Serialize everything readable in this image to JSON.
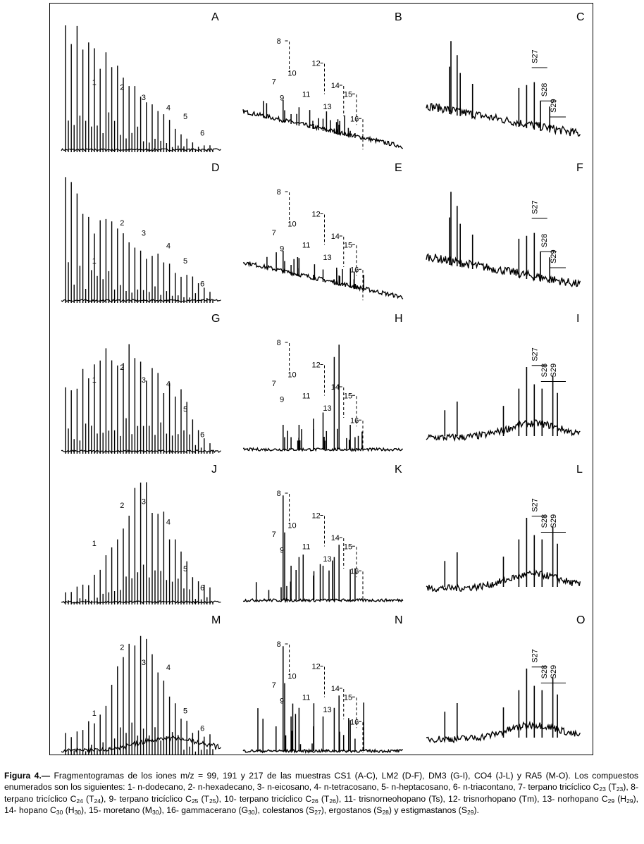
{
  "chart_data": [
    {
      "type": "line",
      "panel": "A",
      "kind": "alkane",
      "title": "A",
      "peak_labels": [
        "1",
        "2",
        "3",
        "4",
        "5",
        "6"
      ],
      "envelope": "front",
      "label_y": [
        0.52,
        0.48,
        0.4,
        0.32,
        0.25,
        0.12
      ]
    },
    {
      "type": "line",
      "panel": "B",
      "kind": "terpane",
      "title": "B",
      "peak_labels": [
        "7",
        "8",
        "9",
        "10",
        "11",
        "12",
        "13",
        "14",
        "15",
        "16"
      ],
      "profile": "low"
    },
    {
      "type": "line",
      "panel": "C",
      "kind": "sterane",
      "title": "C",
      "series_labels": [
        "S27",
        "S28",
        "S29"
      ],
      "profile": "early-high"
    },
    {
      "type": "line",
      "panel": "D",
      "kind": "alkane",
      "title": "D",
      "peak_labels": [
        "1",
        "2",
        "3",
        "4",
        "5",
        "6"
      ],
      "envelope": "front-mid",
      "label_y": [
        0.3,
        0.6,
        0.52,
        0.42,
        0.3,
        0.12
      ]
    },
    {
      "type": "line",
      "panel": "E",
      "kind": "terpane",
      "title": "E",
      "peak_labels": [
        "7",
        "8",
        "9",
        "10",
        "11",
        "12",
        "13",
        "14",
        "15",
        "16"
      ],
      "profile": "low"
    },
    {
      "type": "line",
      "panel": "F",
      "kind": "sterane",
      "title": "F",
      "series_labels": [
        "S27",
        "S28",
        "S29"
      ],
      "profile": "early-high"
    },
    {
      "type": "line",
      "panel": "G",
      "kind": "alkane",
      "title": "G",
      "peak_labels": [
        "1",
        "2",
        "3",
        "4",
        "5",
        "6"
      ],
      "envelope": "mid",
      "label_y": [
        0.55,
        0.65,
        0.55,
        0.52,
        0.32,
        0.12
      ]
    },
    {
      "type": "line",
      "panel": "H",
      "kind": "terpane",
      "title": "H",
      "peak_labels": [
        "7",
        "8",
        "9",
        "10",
        "11",
        "12",
        "13",
        "14",
        "15",
        "16"
      ],
      "profile": "hopane"
    },
    {
      "type": "line",
      "panel": "I",
      "kind": "sterane",
      "title": "I",
      "series_labels": [
        "S27",
        "S28",
        "S29"
      ],
      "profile": "late"
    },
    {
      "type": "line",
      "panel": "J",
      "kind": "alkane",
      "title": "J",
      "peak_labels": [
        "1",
        "2",
        "3",
        "4",
        "5",
        "6"
      ],
      "envelope": "bell",
      "label_y": [
        0.45,
        0.75,
        0.78,
        0.62,
        0.25,
        0.1
      ]
    },
    {
      "type": "line",
      "panel": "K",
      "kind": "terpane",
      "title": "K",
      "peak_labels": [
        "7",
        "8",
        "9",
        "10",
        "11",
        "12",
        "13",
        "14",
        "15",
        "16"
      ],
      "profile": "tricyclic"
    },
    {
      "type": "line",
      "panel": "L",
      "kind": "sterane",
      "title": "L",
      "series_labels": [
        "S27",
        "S28",
        "S29"
      ],
      "profile": "late-noisy"
    },
    {
      "type": "line",
      "panel": "M",
      "kind": "alkane",
      "title": "M",
      "peak_labels": [
        "1",
        "2",
        "3",
        "4",
        "5",
        "6"
      ],
      "envelope": "bell-hump",
      "label_y": [
        0.3,
        0.82,
        0.7,
        0.66,
        0.32,
        0.18
      ]
    },
    {
      "type": "line",
      "panel": "N",
      "kind": "terpane",
      "title": "N",
      "peak_labels": [
        "7",
        "8",
        "9",
        "10",
        "11",
        "12",
        "13",
        "14",
        "15",
        "16"
      ],
      "profile": "tricyclic"
    },
    {
      "type": "line",
      "panel": "O",
      "kind": "sterane",
      "title": "O",
      "series_labels": [
        "S27",
        "S28",
        "S29"
      ],
      "profile": "late-noisy"
    }
  ],
  "caption": {
    "label": "Figura 4.—",
    "text_html": " Fragmentogramas de los iones m/z = 99, 191 y 217 de las muestras CS1 (A-C), LM2 (D-F), DM3 (G-I), CO4 (J-L) y RA5 (M-O). Los compuestos enumerados son los siguientes: 1- n-dodecano, 2- n-hexadecano, 3- n-eicosano, 4- n-tetracosano, 5- n-heptacosano, 6- n-triacontano, 7- terpano tricíclico C<sub>23</sub> (T<sub>23</sub>), 8- terpano tricíclico C<sub>24</sub> (T<sub>24</sub>), 9- terpano tricíclico C<sub>25</sub> (T<sub>25</sub>), 10- terpano tricíclico C<sub>26</sub> (T<sub>26</sub>), 11- trisnorneohopano (Ts), 12- trisnorhopano (Tm), 13- norhopano C<sub>29</sub> (H<sub>29</sub>), 14- hopano C<sub>30</sub> (H<sub>30</sub>), 15- moretano (M<sub>30</sub>), 16- gammacerano (G<sub>30</sub>), colestanos (S<sub>27</sub>), ergostanos (S<sub>28</sub>) y estigmastanos (S<sub>29</sub>)."
  }
}
